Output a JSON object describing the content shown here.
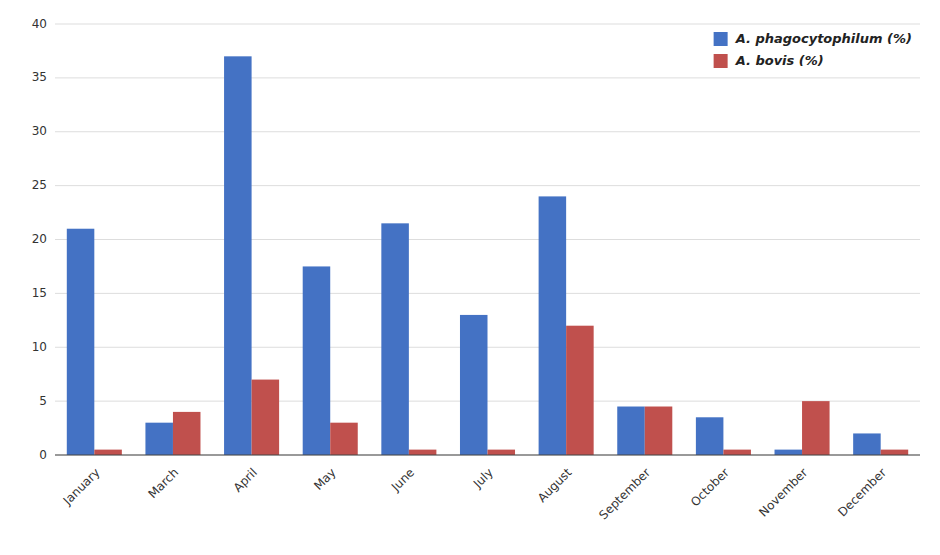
{
  "chart_data": {
    "type": "bar",
    "categories": [
      "January",
      "March",
      "April",
      "May",
      "June",
      "July",
      "August",
      "September",
      "October",
      "November",
      "December"
    ],
    "series": [
      {
        "name": "A. phagocytophilum (%)",
        "color": "#4472C4",
        "values": [
          21,
          3,
          37,
          17.5,
          21.5,
          13,
          24,
          4.5,
          3.5,
          0.5,
          2
        ]
      },
      {
        "name": "A. bovis (%)",
        "color": "#C0504D",
        "values": [
          0.5,
          4,
          7,
          3,
          0.5,
          0.5,
          12,
          4.5,
          0.5,
          5,
          0.5
        ]
      }
    ],
    "ylim": [
      0,
      40
    ],
    "yticks": [
      0,
      5,
      10,
      15,
      20,
      25,
      30,
      35,
      40
    ],
    "grid": true,
    "legend": "upper right"
  }
}
